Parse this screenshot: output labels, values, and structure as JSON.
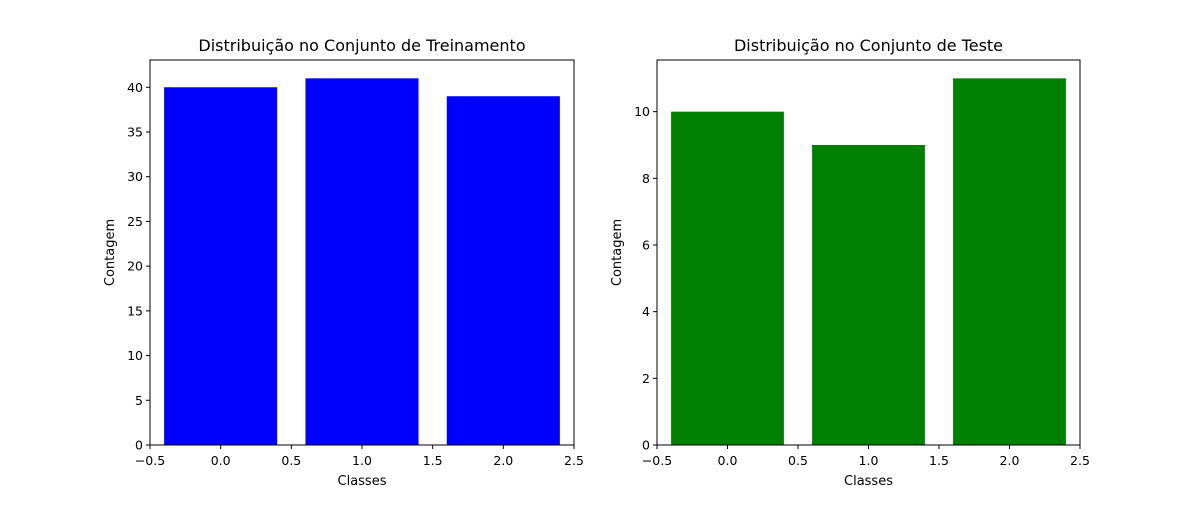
{
  "chart_data": [
    {
      "type": "bar",
      "title": "Distribuição no Conjunto de Treinamento",
      "xlabel": "Classes",
      "ylabel": "Contagem",
      "x": [
        0,
        1,
        2
      ],
      "values": [
        40,
        41,
        39
      ],
      "bar_width": 0.8,
      "color": "#0000ff",
      "xlim": [
        -0.5,
        2.5
      ],
      "ylim": [
        0,
        43.05
      ],
      "xticks": [
        -0.5,
        0.0,
        0.5,
        1.0,
        1.5,
        2.0,
        2.5
      ],
      "xtick_labels": [
        "−0.5",
        "0.0",
        "0.5",
        "1.0",
        "1.5",
        "2.0",
        "2.5"
      ],
      "yticks": [
        0,
        5,
        10,
        15,
        20,
        25,
        30,
        35,
        40
      ],
      "ytick_labels": [
        "0",
        "5",
        "10",
        "15",
        "20",
        "25",
        "30",
        "35",
        "40"
      ],
      "grid": false,
      "legend": false
    },
    {
      "type": "bar",
      "title": "Distribuição no Conjunto de Teste",
      "xlabel": "Classes",
      "ylabel": "Contagem",
      "x": [
        0,
        1,
        2
      ],
      "values": [
        10,
        9,
        11
      ],
      "bar_width": 0.8,
      "color": "#008000",
      "xlim": [
        -0.5,
        2.5
      ],
      "ylim": [
        0,
        11.55
      ],
      "xticks": [
        -0.5,
        0.0,
        0.5,
        1.0,
        1.5,
        2.0,
        2.5
      ],
      "xtick_labels": [
        "−0.5",
        "0.0",
        "0.5",
        "1.0",
        "1.5",
        "2.0",
        "2.5"
      ],
      "yticks": [
        0,
        2,
        4,
        6,
        8,
        10
      ],
      "ytick_labels": [
        "0",
        "2",
        "4",
        "6",
        "8",
        "10"
      ],
      "grid": false,
      "legend": false
    }
  ]
}
